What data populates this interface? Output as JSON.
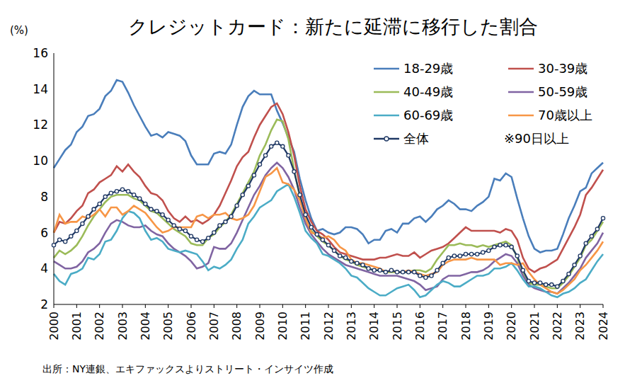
{
  "chart_data": {
    "type": "line",
    "title": "クレジットカード：新たに延滞に移行した割合",
    "y_label": "(%)",
    "annotations": [
      "※90日以上"
    ],
    "source": "出所：NY連銀、エキファックスよりストリート・インサイツ作成",
    "categories": [
      "2000",
      null,
      null,
      null,
      "2001",
      null,
      null,
      null,
      "2002",
      null,
      null,
      null,
      "2003",
      null,
      null,
      null,
      "2004",
      null,
      null,
      null,
      "2005",
      null,
      null,
      null,
      "2006",
      null,
      null,
      null,
      "2007",
      null,
      null,
      null,
      "2008",
      null,
      null,
      null,
      "2009",
      null,
      null,
      null,
      "2010",
      null,
      null,
      null,
      "2011",
      null,
      null,
      null,
      "2012",
      null,
      null,
      null,
      "2013",
      null,
      null,
      null,
      "2014",
      null,
      null,
      null,
      "2015",
      null,
      null,
      null,
      "2016",
      null,
      null,
      null,
      "2017",
      null,
      null,
      null,
      "2018",
      null,
      null,
      null,
      "2019",
      null,
      null,
      null,
      "2020",
      null,
      null,
      null,
      "2021",
      null,
      null,
      null,
      "2022",
      null,
      null,
      null,
      "2023",
      null,
      null,
      null,
      "2024"
    ],
    "ylim": [
      2,
      16
    ],
    "yticks": [
      2,
      4,
      6,
      8,
      10,
      12,
      14,
      16
    ],
    "grid": false,
    "legend": "top-right",
    "series": [
      {
        "name": "18-29歳",
        "color": "#4a7ebb",
        "values": [
          9.6,
          10.1,
          10.6,
          10.9,
          11.6,
          11.9,
          12.5,
          12.6,
          12.9,
          13.6,
          13.9,
          14.5,
          14.4,
          13.8,
          13.1,
          12.5,
          11.9,
          11.4,
          11.5,
          11.3,
          11.6,
          11.5,
          11.4,
          11.1,
          10.3,
          9.8,
          9.8,
          9.8,
          10.4,
          10.5,
          10.4,
          10.9,
          12.0,
          13.0,
          13.6,
          13.9,
          13.7,
          13.7,
          13.7,
          12.8,
          12.1,
          11.3,
          10.5,
          9.0,
          7.8,
          6.8,
          6.1,
          6.2,
          6.0,
          5.9,
          6.0,
          6.3,
          6.3,
          6.2,
          5.9,
          5.4,
          5.6,
          5.6,
          6.1,
          6.2,
          6.0,
          6.5,
          6.5,
          6.8,
          6.9,
          6.6,
          6.9,
          7.3,
          7.5,
          7.8,
          7.6,
          7.3,
          7.3,
          7.2,
          7.5,
          7.7,
          8.0,
          9.0,
          8.9,
          9.3,
          9.1,
          7.9,
          6.8,
          5.8,
          5.1,
          4.9,
          5.0,
          5.0,
          5.1,
          5.9,
          6.8,
          7.5,
          8.3,
          8.5,
          9.3,
          9.6,
          9.9
        ]
      },
      {
        "name": "30-39歳",
        "color": "#c0504d",
        "values": [
          6.0,
          6.6,
          6.5,
          6.8,
          7.2,
          7.5,
          8.2,
          8.4,
          8.8,
          9.0,
          9.2,
          9.7,
          9.4,
          9.8,
          9.4,
          9.1,
          8.6,
          8.2,
          8.1,
          7.8,
          7.2,
          6.8,
          6.6,
          6.9,
          6.6,
          6.7,
          6.5,
          6.7,
          7.0,
          7.5,
          8.2,
          8.9,
          9.7,
          10.2,
          10.5,
          11.3,
          12.0,
          12.5,
          13.0,
          13.2,
          12.6,
          11.6,
          10.3,
          8.6,
          7.3,
          6.6,
          6.1,
          5.9,
          5.6,
          5.2,
          4.9,
          4.8,
          4.7,
          4.6,
          4.5,
          4.5,
          4.5,
          4.6,
          4.6,
          4.7,
          4.8,
          4.7,
          4.7,
          4.9,
          4.6,
          4.8,
          5.0,
          5.1,
          5.2,
          5.4,
          5.7,
          6.0,
          6.3,
          6.1,
          6.1,
          6.1,
          6.1,
          6.1,
          6.0,
          6.2,
          6.1,
          5.6,
          4.6,
          4.0,
          3.8,
          4.0,
          4.1,
          4.3,
          4.5,
          5.1,
          5.7,
          6.3,
          7.0,
          8.1,
          8.5,
          9.0,
          9.5
        ]
      },
      {
        "name": "40-49歳",
        "color": "#9bbb59",
        "values": [
          4.6,
          5.0,
          4.8,
          5.0,
          5.3,
          5.8,
          6.4,
          6.9,
          7.3,
          7.7,
          8.0,
          8.1,
          8.1,
          8.1,
          7.9,
          7.8,
          7.5,
          7.2,
          7.1,
          6.8,
          6.5,
          6.2,
          6.0,
          5.8,
          5.4,
          5.3,
          5.3,
          5.7,
          5.9,
          6.3,
          6.6,
          7.0,
          7.6,
          8.2,
          8.8,
          9.4,
          10.3,
          10.9,
          11.7,
          12.3,
          12.2,
          11.2,
          9.5,
          8.0,
          6.6,
          6.1,
          5.8,
          5.5,
          5.3,
          5.0,
          4.7,
          4.5,
          4.4,
          4.2,
          4.1,
          4.0,
          3.9,
          3.9,
          3.8,
          3.8,
          3.8,
          3.8,
          3.8,
          3.9,
          3.9,
          3.8,
          4.0,
          4.5,
          4.9,
          5.3,
          5.3,
          5.4,
          5.3,
          5.3,
          5.2,
          5.3,
          5.2,
          5.3,
          5.4,
          5.5,
          5.3,
          4.6,
          3.7,
          3.2,
          3.1,
          3.1,
          3.0,
          2.9,
          2.9,
          3.2,
          3.6,
          4.1,
          4.6,
          5.3,
          5.6,
          6.1,
          6.6
        ]
      },
      {
        "name": "50-59歳",
        "color": "#8064a2",
        "values": [
          4.4,
          4.2,
          4.0,
          4.0,
          4.1,
          4.4,
          4.9,
          5.1,
          5.4,
          6.0,
          6.5,
          6.7,
          6.6,
          6.4,
          6.3,
          6.3,
          6.4,
          6.1,
          5.9,
          5.8,
          5.4,
          5.1,
          4.9,
          4.7,
          4.4,
          4.0,
          4.1,
          4.3,
          5.2,
          5.1,
          5.1,
          5.4,
          6.0,
          6.7,
          7.4,
          8.1,
          8.6,
          9.2,
          9.6,
          9.9,
          9.6,
          9.1,
          8.4,
          7.4,
          6.5,
          5.9,
          5.5,
          5.1,
          4.8,
          4.6,
          4.4,
          4.2,
          4.1,
          4.0,
          3.9,
          3.8,
          3.7,
          3.6,
          3.6,
          3.6,
          3.6,
          3.5,
          3.4,
          3.3,
          3.1,
          2.8,
          2.9,
          3.0,
          3.4,
          3.6,
          3.6,
          3.6,
          3.7,
          3.8,
          3.8,
          3.9,
          4.1,
          4.4,
          4.6,
          4.8,
          4.7,
          4.3,
          3.6,
          3.1,
          2.9,
          2.8,
          2.7,
          2.7,
          2.6,
          2.9,
          3.2,
          3.6,
          4.0,
          4.6,
          5.0,
          5.4,
          6.0
        ]
      },
      {
        "name": "60-69歳",
        "color": "#4bacc6",
        "values": [
          3.7,
          3.3,
          3.1,
          3.7,
          3.8,
          4.0,
          4.6,
          4.5,
          4.8,
          5.5,
          5.6,
          6.1,
          6.8,
          7.2,
          7.1,
          6.8,
          6.1,
          5.6,
          5.7,
          5.5,
          5.1,
          5.0,
          4.9,
          5.0,
          4.9,
          4.8,
          4.4,
          3.9,
          4.1,
          4.0,
          4.2,
          4.5,
          5.1,
          5.6,
          6.5,
          6.9,
          7.4,
          7.6,
          7.8,
          8.3,
          8.5,
          8.7,
          8.0,
          7.1,
          6.1,
          5.7,
          5.4,
          4.8,
          4.7,
          4.5,
          4.3,
          4.0,
          3.6,
          3.5,
          3.2,
          2.9,
          2.7,
          2.5,
          2.5,
          2.7,
          2.9,
          3.0,
          3.1,
          2.8,
          2.4,
          2.5,
          2.8,
          3.1,
          3.3,
          3.2,
          3.0,
          3.0,
          3.2,
          3.4,
          3.6,
          3.6,
          3.7,
          4.0,
          4.0,
          4.1,
          4.3,
          3.9,
          3.4,
          3.0,
          3.0,
          2.9,
          2.7,
          2.5,
          2.4,
          2.6,
          2.7,
          2.9,
          3.2,
          3.4,
          3.9,
          4.4,
          4.8
        ]
      },
      {
        "name": "70歳以上",
        "color": "#f79646",
        "values": [
          6.0,
          7.0,
          6.5,
          6.6,
          6.6,
          6.9,
          6.8,
          7.0,
          7.3,
          6.9,
          7.4,
          7.4,
          7.0,
          7.2,
          7.5,
          7.3,
          7.1,
          6.7,
          6.3,
          6.0,
          6.1,
          6.3,
          6.3,
          6.3,
          6.3,
          6.9,
          7.0,
          6.8,
          7.0,
          7.0,
          7.1,
          6.8,
          6.7,
          6.8,
          7.0,
          7.5,
          8.3,
          9.1,
          9.3,
          9.6,
          8.8,
          8.7,
          8.4,
          7.8,
          6.8,
          6.0,
          5.9,
          5.7,
          5.8,
          5.6,
          5.2,
          5.0,
          4.5,
          4.3,
          4.3,
          4.2,
          4.1,
          4.0,
          3.8,
          3.9,
          3.8,
          3.8,
          3.9,
          3.8,
          3.7,
          3.6,
          3.7,
          3.8,
          4.2,
          4.4,
          4.5,
          4.5,
          4.5,
          4.6,
          4.5,
          4.5,
          4.5,
          4.5,
          4.2,
          4.3,
          4.3,
          4.2,
          4.3,
          3.8,
          3.4,
          3.1,
          2.9,
          2.7,
          2.6,
          2.8,
          3.1,
          3.4,
          3.9,
          4.2,
          4.6,
          5.0,
          5.5
        ]
      },
      {
        "name": "全体",
        "color": "#1f3864",
        "marker": "circle",
        "values": [
          5.3,
          5.6,
          5.5,
          5.8,
          6.1,
          6.5,
          6.9,
          7.3,
          7.6,
          8.0,
          8.2,
          8.3,
          8.4,
          8.3,
          8.1,
          7.9,
          7.6,
          7.3,
          7.2,
          7.0,
          6.7,
          6.4,
          6.2,
          6.1,
          5.8,
          5.6,
          5.5,
          5.7,
          6.0,
          6.4,
          6.6,
          6.9,
          7.5,
          8.1,
          8.6,
          9.2,
          9.8,
          10.3,
          10.8,
          11.0,
          10.8,
          10.3,
          9.4,
          8.1,
          7.0,
          6.3,
          5.9,
          5.6,
          5.3,
          5.0,
          4.7,
          4.6,
          4.4,
          4.3,
          4.2,
          4.0,
          3.9,
          3.9,
          3.8,
          3.9,
          3.8,
          3.8,
          3.8,
          3.8,
          3.6,
          3.5,
          3.6,
          3.9,
          4.3,
          4.6,
          4.7,
          4.7,
          4.8,
          4.8,
          4.8,
          4.9,
          5.0,
          5.2,
          5.3,
          5.3,
          5.2,
          4.7,
          3.9,
          3.3,
          3.2,
          3.2,
          3.1,
          3.1,
          3.0,
          3.3,
          3.7,
          4.2,
          4.7,
          5.4,
          5.8,
          6.2,
          6.8
        ]
      }
    ]
  }
}
